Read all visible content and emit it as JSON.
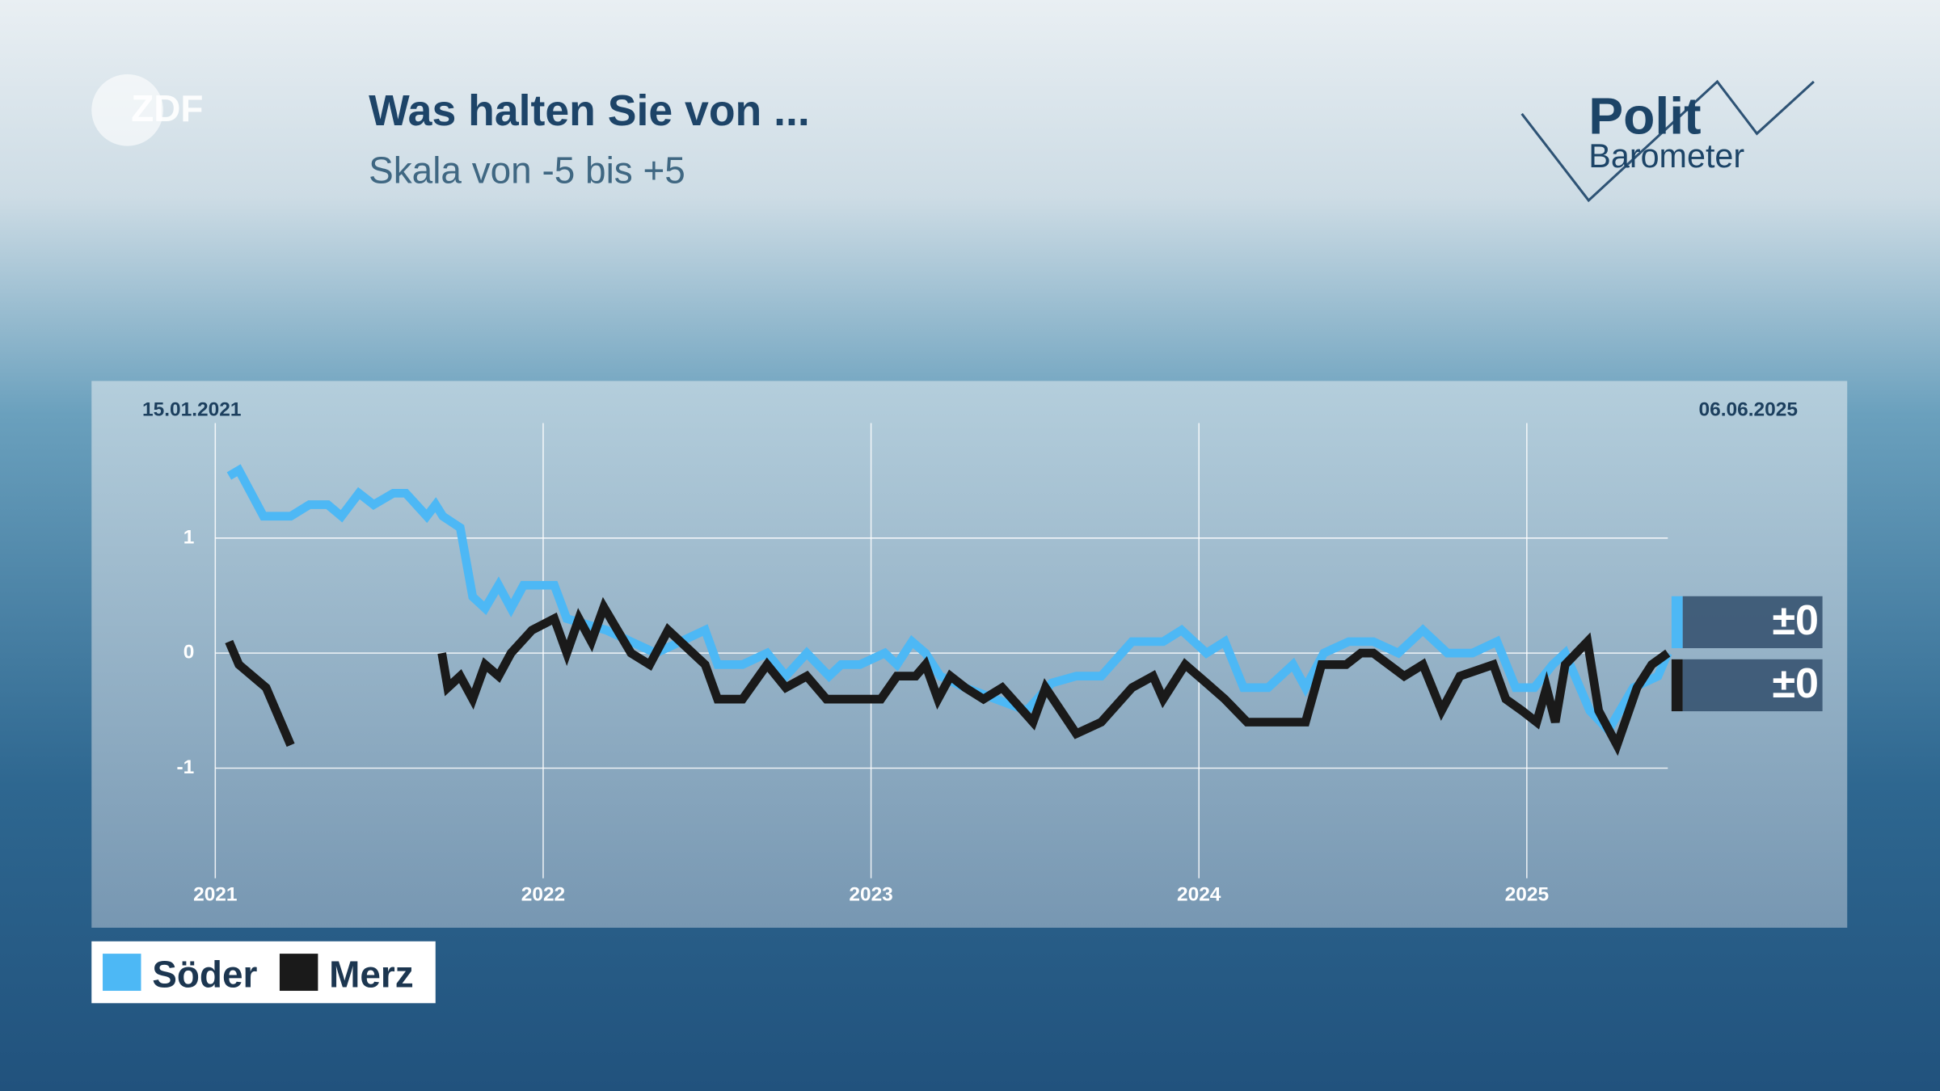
{
  "branding": {
    "broadcaster": "ZDF",
    "show_line1": "Polit",
    "show_line2": "Barometer"
  },
  "chart_data": {
    "type": "line",
    "title": "Was halten Sie von ...",
    "subtitle": "Skala von -5 bis +5",
    "start_date": "15.01.2021",
    "end_date": "06.06.2025",
    "xlim": [
      2021,
      2025.43
    ],
    "xticks": [
      2021,
      2022,
      2023,
      2024,
      2025
    ],
    "ylim": [
      -2,
      2
    ],
    "yticks": [
      1,
      0,
      -1
    ],
    "grid": true,
    "legend": "bottom-left",
    "series": [
      {
        "name": "Söder",
        "color": "#4db8f5",
        "change_label": "±0",
        "x": [
          2021.042,
          2021.072,
          2021.147,
          2021.23,
          2021.287,
          2021.343,
          2021.385,
          2021.438,
          2021.483,
          2021.543,
          2021.581,
          2021.645,
          2021.672,
          2021.694,
          2021.747,
          2021.785,
          2021.823,
          2021.864,
          2021.902,
          2021.94,
          2022.034,
          2022.072,
          2022.192,
          2022.268,
          2022.343,
          2022.419,
          2022.494,
          2022.532,
          2022.608,
          2022.683,
          2022.74,
          2022.804,
          2022.872,
          2022.909,
          2022.966,
          2023.042,
          2023.079,
          2023.125,
          2023.166,
          2023.211,
          2023.287,
          2023.381,
          2023.475,
          2023.551,
          2023.626,
          2023.702,
          2023.796,
          2023.891,
          2023.947,
          2024.023,
          2024.079,
          2024.136,
          2024.211,
          2024.287,
          2024.325,
          2024.381,
          2024.457,
          2024.532,
          2024.608,
          2024.683,
          2024.758,
          2024.834,
          2024.909,
          2024.966,
          2025.023,
          2025.079,
          2025.117,
          2025.192,
          2025.249,
          2025.325,
          2025.4,
          2025.43
        ],
        "values": [
          1.54,
          1.59,
          1.19,
          1.19,
          1.29,
          1.29,
          1.19,
          1.39,
          1.29,
          1.39,
          1.39,
          1.19,
          1.29,
          1.19,
          1.09,
          0.49,
          0.39,
          0.59,
          0.39,
          0.59,
          0.59,
          0.3,
          0.2,
          0.1,
          0,
          0.1,
          0.2,
          -0.1,
          -0.1,
          0,
          -0.2,
          0,
          -0.2,
          -0.1,
          -0.1,
          0,
          -0.1,
          0.1,
          0,
          -0.2,
          -0.3,
          -0.4,
          -0.5,
          -0.26,
          -0.2,
          -0.2,
          0.1,
          0.1,
          0.2,
          0,
          0.1,
          -0.3,
          -0.3,
          -0.1,
          -0.3,
          0,
          0.1,
          0.1,
          0,
          0.2,
          0,
          0,
          0.1,
          -0.3,
          -0.3,
          -0.1,
          0,
          -0.5,
          -0.67,
          -0.3,
          -0.2,
          0
        ]
      },
      {
        "name": "Merz",
        "color": "#1a1a1a",
        "change_label": "±0",
        "x": [
          2021.042,
          2021.072,
          2021.155,
          2021.23,
          2021.46,
          2021.691,
          2021.709,
          2021.747,
          2021.785,
          2021.823,
          2021.864,
          2021.902,
          2021.966,
          2022.034,
          2022.072,
          2022.109,
          2022.147,
          2022.185,
          2022.268,
          2022.325,
          2022.381,
          2022.494,
          2022.532,
          2022.608,
          2022.683,
          2022.74,
          2022.804,
          2022.864,
          2023.03,
          2023.079,
          2023.136,
          2023.166,
          2023.204,
          2023.242,
          2023.287,
          2023.343,
          2023.4,
          2023.494,
          2023.532,
          2023.626,
          2023.702,
          2023.796,
          2023.86,
          2023.891,
          2023.958,
          2024.023,
          2024.079,
          2024.147,
          2024.325,
          2024.374,
          2024.449,
          2024.494,
          2024.532,
          2024.626,
          2024.683,
          2024.74,
          2024.796,
          2024.898,
          2024.936,
          2024.985,
          2025.03,
          2025.06,
          2025.087,
          2025.117,
          2025.185,
          2025.219,
          2025.275,
          2025.336,
          2025.381,
          2025.43
        ],
        "values": [
          0.1,
          -0.1,
          -0.3,
          -0.8,
          null,
          0,
          -0.3,
          -0.2,
          -0.4,
          -0.1,
          -0.2,
          0,
          0.2,
          0.3,
          0,
          0.3,
          0.1,
          0.4,
          0,
          -0.1,
          0.2,
          -0.1,
          -0.4,
          -0.4,
          -0.1,
          -0.3,
          -0.2,
          -0.4,
          -0.4,
          -0.2,
          -0.2,
          -0.1,
          -0.4,
          -0.2,
          -0.3,
          -0.4,
          -0.3,
          -0.6,
          -0.3,
          -0.7,
          -0.6,
          -0.3,
          -0.2,
          -0.4,
          -0.1,
          -0.26,
          -0.4,
          -0.6,
          -0.6,
          -0.1,
          -0.1,
          0,
          0,
          -0.2,
          -0.1,
          -0.5,
          -0.2,
          -0.1,
          -0.4,
          -0.5,
          -0.6,
          -0.3,
          -0.6,
          -0.1,
          0.1,
          -0.5,
          -0.8,
          -0.3,
          -0.1,
          0
        ]
      }
    ]
  }
}
